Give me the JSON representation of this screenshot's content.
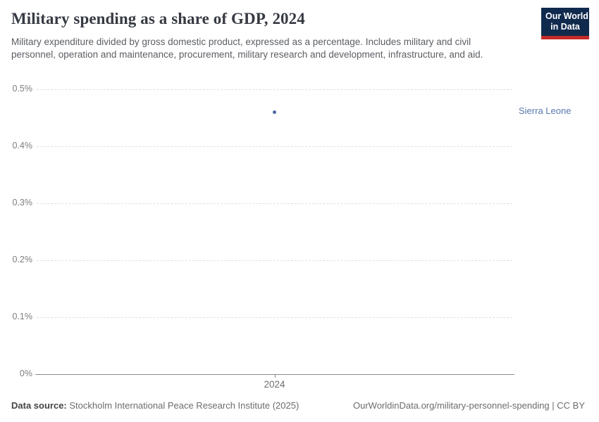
{
  "header": {
    "title": "Military spending as a share of GDP, 2024",
    "subtitle": "Military expenditure divided by gross domestic product, expressed as a percentage. Includes military and civil personnel, operation and maintenance, procurement, military research and development, infrastructure, and aid.",
    "logo": {
      "line1": "Our World",
      "line2": "in Data",
      "bg_color": "#102a4d",
      "accent_color": "#c52a28"
    }
  },
  "chart_data": {
    "type": "scatter",
    "title": "Military spending as a share of GDP, 2024",
    "x": [
      2024
    ],
    "series": [
      {
        "name": "Sierra Leone",
        "values": [
          0.46
        ],
        "dot_color": "#4a699e",
        "label_color": "#5878ad"
      }
    ],
    "xlabel": "",
    "ylabel": "",
    "ylim": [
      0,
      0.5
    ],
    "yticks": [
      {
        "value": 0.0,
        "label": "0%"
      },
      {
        "value": 0.1,
        "label": "0.1%"
      },
      {
        "value": 0.2,
        "label": "0.2%"
      },
      {
        "value": 0.3,
        "label": "0.3%"
      },
      {
        "value": 0.4,
        "label": "0.4%"
      },
      {
        "value": 0.5,
        "label": "0.5%"
      }
    ],
    "xticks": [
      {
        "value": 2024,
        "label": "2024"
      }
    ],
    "grid": "horizontal-dashed",
    "legend_position": "entity-label-right-of-plot"
  },
  "footer": {
    "datasource_label": "Data source:",
    "datasource_value": "Stockholm International Peace Research Institute (2025)",
    "attribution": "OurWorldinData.org/military-personnel-spending | CC BY"
  }
}
